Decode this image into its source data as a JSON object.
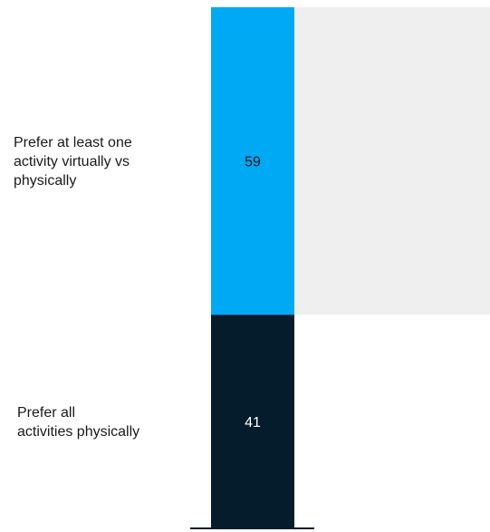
{
  "chart_data": {
    "type": "bar",
    "orientation": "stacked-vertical-single",
    "categories": [
      "Prefer at least one activity virtually vs physically",
      "Prefer all activities physically"
    ],
    "values": [
      59,
      41
    ],
    "value_labels": [
      "59",
      "41"
    ],
    "ylim": [
      0,
      100
    ],
    "grid": false,
    "legend": "none",
    "colors": {
      "virtual": "#00a9f4",
      "physical": "#051c2c",
      "background_panel": "#efefef",
      "baseline": "#051c2c"
    }
  },
  "labels": {
    "virtual_line1": "Prefer at least one",
    "virtual_line2": "activity virtually vs",
    "virtual_line3": "physically",
    "physical_line1": "Prefer all",
    "physical_line2": "activities physically"
  }
}
